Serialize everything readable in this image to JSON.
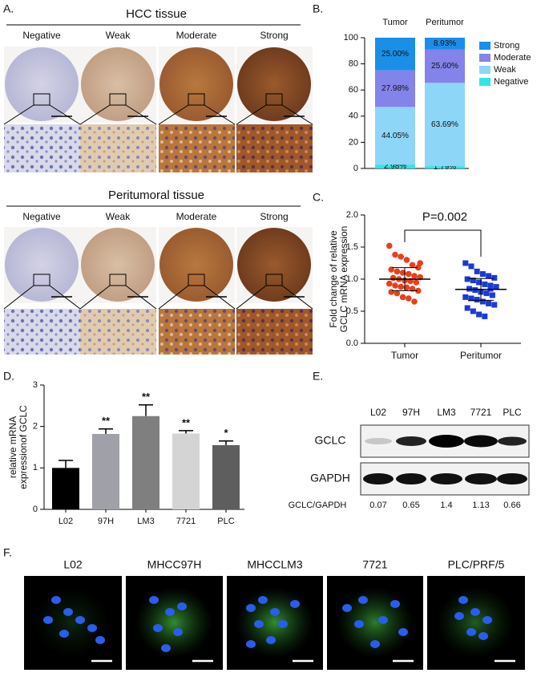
{
  "figure": {
    "panel_a": {
      "label": "A.",
      "sections": [
        {
          "title": "HCC tissue",
          "columns": [
            "Negative",
            "Weak",
            "Moderate",
            "Strong"
          ]
        },
        {
          "title": "Peritumoral tissue",
          "columns": [
            "Negative",
            "Weak",
            "Moderate",
            "Strong"
          ]
        }
      ]
    },
    "panel_b": {
      "label": "B."
    },
    "panel_c": {
      "label": "C."
    },
    "panel_d": {
      "label": "D."
    },
    "panel_e": {
      "label": "E.",
      "lanes": [
        "L02",
        "97H",
        "LM3",
        "7721",
        "PLC"
      ],
      "rows": [
        "GCLC",
        "GAPDH"
      ],
      "ratio_label": "GCLC/GAPDH",
      "ratios": [
        0.07,
        0.65,
        1.4,
        1.13,
        0.66
      ]
    },
    "panel_f": {
      "label": "F.",
      "cells": [
        "L02",
        "MHCC97H",
        "MHCCLM3",
        "7721",
        "PLC/PRF/5"
      ]
    }
  },
  "chart_data": [
    {
      "type": "stacked_bar",
      "categories": [
        "Tumor",
        "Peritumor"
      ],
      "series": [
        {
          "name": "Strong",
          "color": "#1a8fe8",
          "values": [
            25.0,
            8.93
          ],
          "value_labels": [
            "25.00%",
            "8.93%"
          ]
        },
        {
          "name": "Moderate",
          "color": "#8383ea",
          "values": [
            27.98,
            25.6
          ],
          "value_labels": [
            "27.98%",
            "25.60%"
          ]
        },
        {
          "name": "Weak",
          "color": "#8dd6f8",
          "values": [
            44.05,
            63.69
          ],
          "value_labels": [
            "44.05%",
            "63.69%"
          ]
        },
        {
          "name": "Negative",
          "color": "#33e6e6",
          "values": [
            2.98,
            1.79
          ],
          "value_labels": [
            "2.98%",
            "1.79%"
          ]
        }
      ],
      "ylim": [
        0,
        100
      ],
      "yticks": [
        0,
        20,
        40,
        60,
        80,
        100
      ],
      "legend": "right"
    },
    {
      "type": "dot_plot",
      "ylabel": [
        "Fold change of relative",
        "GCLC mRNA expression"
      ],
      "categories": [
        "Tumor",
        "Peritumor"
      ],
      "annotation": "P=0.002",
      "groups": [
        {
          "color": "#e8401c",
          "marker": "circle",
          "mean": 1.0,
          "error": 0.18,
          "values": [
            1.52,
            1.38,
            1.35,
            1.3,
            1.22,
            1.18,
            1.15,
            1.12,
            1.1,
            1.08,
            1.05,
            1.03,
            1.02,
            1.0,
            0.98,
            0.97,
            0.95,
            0.93,
            0.9,
            0.88,
            0.87,
            0.85,
            0.82,
            0.8,
            0.78,
            0.72,
            0.7,
            0.65,
            1.25
          ]
        },
        {
          "color": "#1a3ad8",
          "marker": "square",
          "mean": 0.84,
          "error": 0.17,
          "values": [
            1.25,
            1.2,
            1.12,
            1.08,
            1.05,
            1.02,
            1.0,
            0.98,
            0.95,
            0.92,
            0.9,
            0.88,
            0.85,
            0.83,
            0.8,
            0.78,
            0.75,
            0.72,
            0.7,
            0.68,
            0.65,
            0.62,
            0.6,
            0.55,
            0.5,
            0.45,
            0.42,
            0.85
          ]
        }
      ],
      "ylim": [
        0,
        2
      ],
      "yticks": [
        {
          "value": 0,
          "label": "0.0"
        },
        0.5,
        {
          "value": 1,
          "label": "1.0"
        },
        1.5,
        {
          "value": 2,
          "label": "2.0"
        }
      ]
    },
    {
      "type": "bar",
      "ylabel": [
        "relative mRNA",
        "expressionof GCLC"
      ],
      "categories": [
        "L02",
        "97H",
        "LM3",
        "7721",
        "PLC"
      ],
      "values": [
        1.0,
        1.82,
        2.25,
        1.83,
        1.55
      ],
      "errors": [
        0.18,
        0.12,
        0.27,
        0.07,
        0.1
      ],
      "colors": [
        "#000000",
        "#a0a0a8",
        "#7f7f7f",
        "#d4d4d4",
        "#5e5e5e"
      ],
      "significance": [
        null,
        "**",
        "**",
        "**",
        "*"
      ],
      "ylim": [
        0,
        3
      ],
      "yticks": [
        0,
        1,
        2,
        3
      ]
    }
  ]
}
